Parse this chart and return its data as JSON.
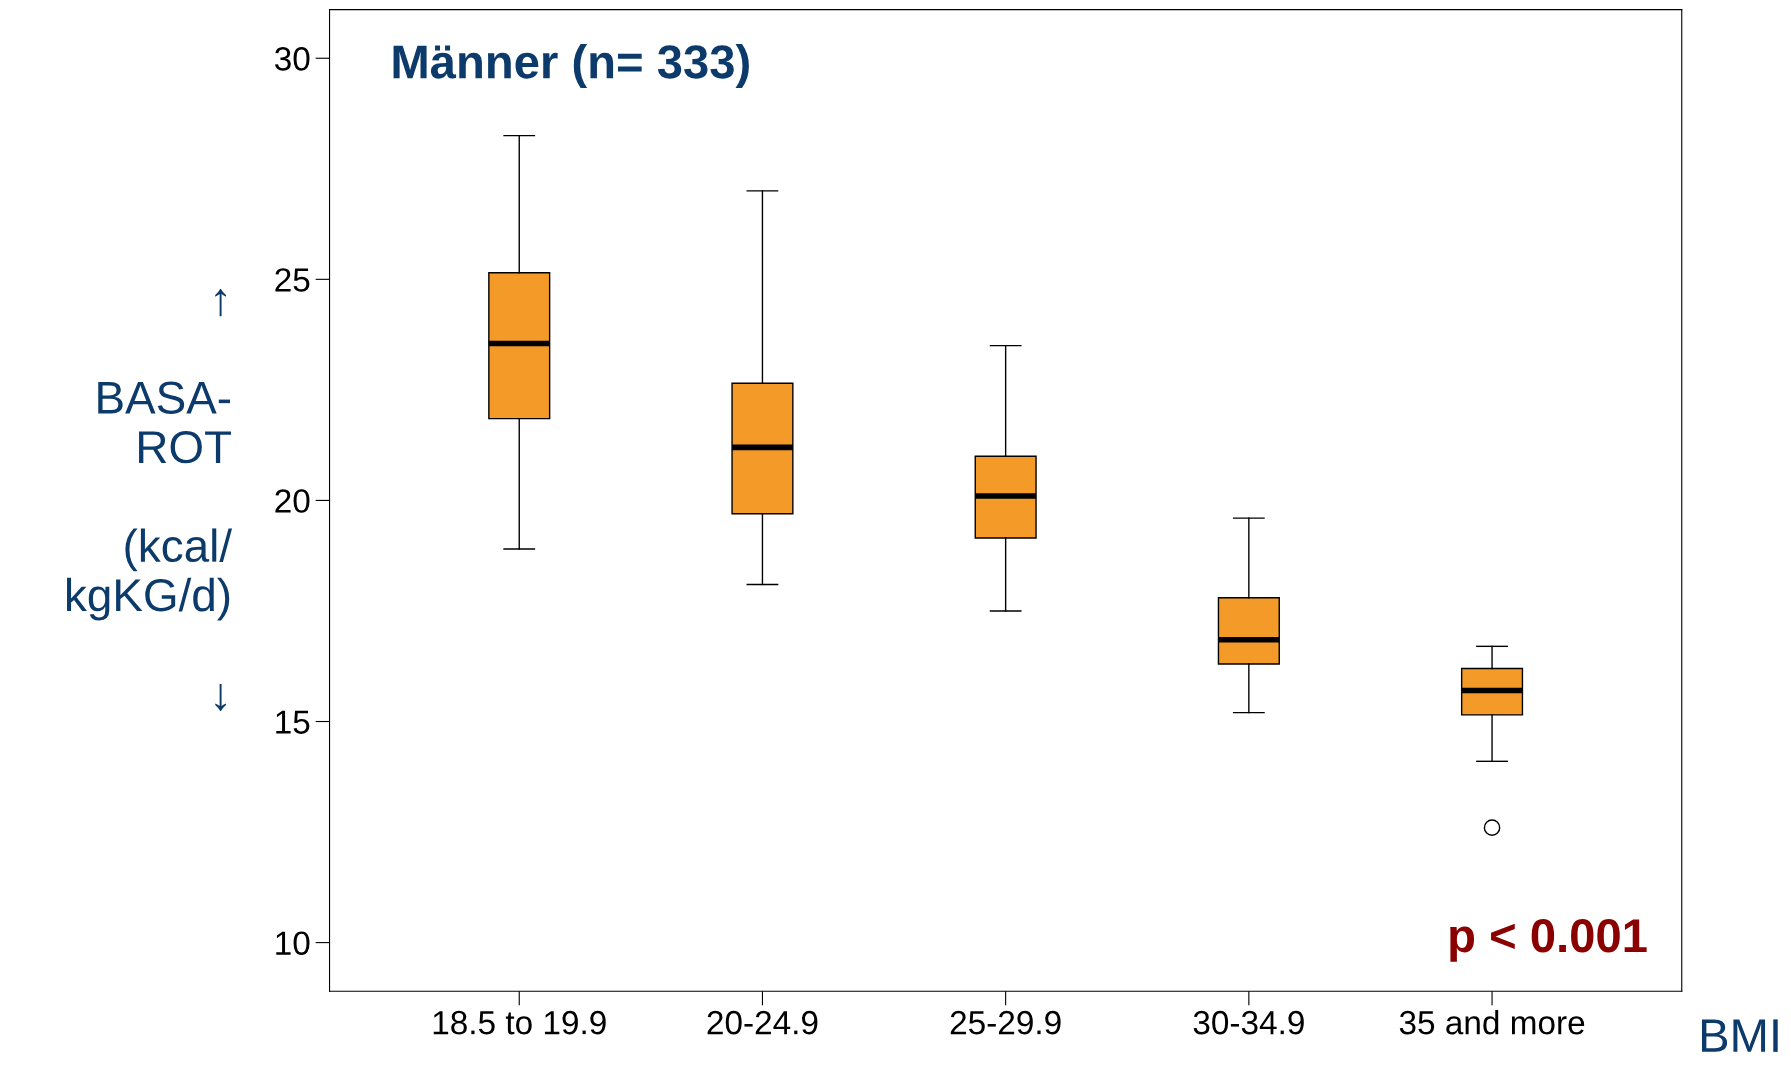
{
  "chart_data": {
    "type": "box",
    "title": "Männer (n= 333)",
    "ylabel": "↑\n\nBASA-\nROT\n\n(kcal/\nkgKG/d)\n\n↓",
    "xlabel": "BMI",
    "categories": [
      "18.5 to 19.9",
      "20-24.9",
      "25-29.9",
      "30-34.9",
      "35 and more"
    ],
    "color": "#f39a28",
    "boxes": [
      {
        "low": 18.9,
        "q1": 21.85,
        "median": 23.55,
        "q3": 25.15,
        "high": 28.25
      },
      {
        "low": 18.1,
        "q1": 19.7,
        "median": 21.2,
        "q3": 22.65,
        "high": 27.0
      },
      {
        "low": 17.5,
        "q1": 19.15,
        "median": 20.1,
        "q3": 21.0,
        "high": 23.5
      },
      {
        "low": 15.2,
        "q1": 16.3,
        "median": 16.85,
        "q3": 17.8,
        "high": 19.6
      },
      {
        "low": 14.1,
        "q1": 15.15,
        "median": 15.7,
        "q3": 16.2,
        "high": 16.7,
        "outliers": [
          12.6
        ]
      }
    ],
    "ylim": [
      8.9,
      31.1
    ],
    "yticks": [
      10,
      15,
      20,
      25,
      30
    ],
    "grid": false,
    "annotations": [
      "p < 0.001"
    ]
  }
}
